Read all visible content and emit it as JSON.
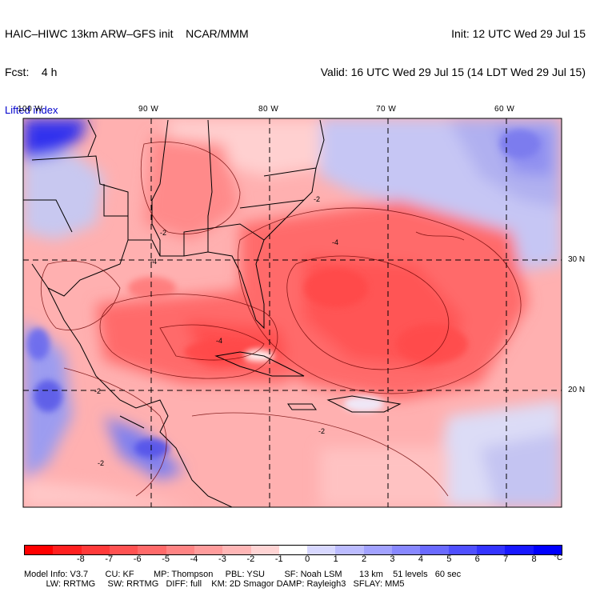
{
  "header": {
    "model": "HAIC–HIWC 13km ARW–GFS init    NCAR/MMM",
    "forecast": "Fcst:    4 h",
    "variable": "Lifted index",
    "init": "Init: 12 UTC Wed 29 Jul 15",
    "valid": "Valid: 16 UTC Wed 29 Jul 15 (14 LDT Wed 29 Jul 15)"
  },
  "map": {
    "lon_labels": [
      "100 W",
      "90 W",
      "80 W",
      "70 W",
      "60 W"
    ],
    "lat_labels": [
      "30 N",
      "20 N"
    ],
    "contour_labels": [
      "-2",
      "-4",
      "-2",
      "-4",
      "-2",
      "-2",
      "-2",
      "-4"
    ]
  },
  "colorbar": {
    "colors": [
      "#ff0000",
      "#ff2020",
      "#ff3a3a",
      "#ff5252",
      "#ff6a6a",
      "#ff8484",
      "#ff9c9c",
      "#ffb6b6",
      "#ffd4d4",
      "#ffffff",
      "#d8d8ff",
      "#bcbcff",
      "#a2a2ff",
      "#8888ff",
      "#6a6aff",
      "#5050ff",
      "#3434ff",
      "#1818ff",
      "#0000ff"
    ],
    "ticks": [
      "-8",
      "-7",
      "-6",
      "-5",
      "-4",
      "-3",
      "-2",
      "-1",
      "0",
      "1",
      "2",
      "3",
      "4",
      "5",
      "6",
      "7",
      "8"
    ],
    "unit": "°C"
  },
  "model_info": {
    "line1": "Model Info: V3.7       CU: KF        MP: Thompson     PBL: YSU        SF: Noah LSM       13 km    51 levels   60 sec",
    "line2": "         LW: RRTMG     SW: RRTMG   DIFF: full    KM: 2D Smagor DAMP: Rayleigh3   SFLAY: MM5"
  }
}
